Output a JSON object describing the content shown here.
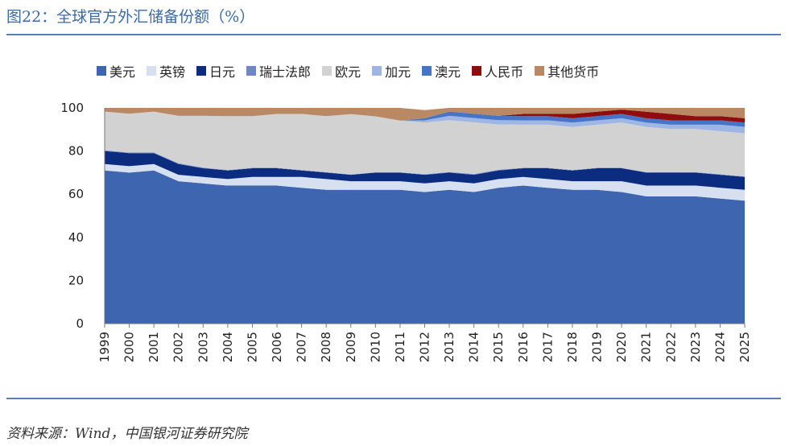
{
  "page": {
    "title": "图22：全球官方外汇储备份额（%）",
    "source": "资料来源：Wind，中国银河证券研究院"
  },
  "chart_data": {
    "type": "area",
    "stacked": true,
    "x": [
      "1999",
      "2000",
      "2001",
      "2002",
      "2003",
      "2004",
      "2005",
      "2006",
      "2007",
      "2008",
      "2009",
      "2010",
      "2011",
      "2012",
      "2013",
      "2014",
      "2015",
      "2016",
      "2017",
      "2018",
      "2019",
      "2020",
      "2021",
      "2022",
      "2023",
      "2024",
      "2025"
    ],
    "series": [
      {
        "name": "美元",
        "color": "#3e65b0",
        "values": [
          71,
          70,
          71,
          66,
          65,
          64,
          64,
          64,
          63,
          62,
          62,
          62,
          62,
          61,
          62,
          61,
          63,
          64,
          63,
          62,
          62,
          61,
          59,
          59,
          59,
          58,
          57
        ]
      },
      {
        "name": "英镑",
        "color": "#d6e0f1",
        "values": [
          3,
          3,
          3,
          3,
          3,
          3,
          4,
          4,
          5,
          5,
          4,
          4,
          4,
          4,
          4,
          4,
          4,
          4,
          4,
          4,
          4,
          5,
          5,
          5,
          5,
          5,
          5
        ]
      },
      {
        "name": "日元",
        "color": "#0c2c80",
        "values": [
          6,
          6,
          5,
          5,
          4,
          4,
          4,
          4,
          3,
          3,
          3,
          4,
          4,
          4,
          4,
          4,
          4,
          4,
          5,
          5,
          6,
          6,
          6,
          6,
          6,
          6,
          6
        ]
      },
      {
        "name": "瑞士法郎",
        "color": "#6f87c2",
        "values": [
          0.3,
          0.3,
          0.3,
          0.3,
          0.3,
          0.2,
          0.2,
          0.2,
          0.2,
          0.2,
          0.1,
          0.1,
          0.1,
          0.2,
          0.3,
          0.3,
          0.3,
          0.2,
          0.2,
          0.2,
          0.2,
          0.2,
          0.2,
          0.2,
          0.2,
          0.2,
          0.2
        ]
      },
      {
        "name": "欧元",
        "color": "#d3d2d2",
        "values": [
          18,
          18,
          19,
          22,
          24,
          25,
          24,
          25,
          26,
          26,
          28,
          26,
          24,
          24,
          24,
          24,
          21,
          20,
          20,
          20,
          20,
          21,
          21,
          20,
          20,
          20,
          20
        ]
      },
      {
        "name": "加元",
        "color": "#9eb6e4",
        "values": [
          0,
          0,
          0,
          0,
          0,
          0,
          0,
          0,
          0,
          0,
          0,
          0,
          0,
          1,
          2,
          2,
          2,
          2,
          2,
          2,
          2,
          2,
          2,
          2,
          2,
          3,
          3
        ]
      },
      {
        "name": "澳元",
        "color": "#4774c6",
        "values": [
          0,
          0,
          0,
          0,
          0,
          0,
          0,
          0,
          0,
          0,
          0,
          0,
          0,
          1,
          2,
          2,
          2,
          2,
          2,
          2,
          2,
          2,
          2,
          2,
          2,
          2,
          2
        ]
      },
      {
        "name": "人民币",
        "color": "#8f0d0d",
        "values": [
          0,
          0,
          0,
          0,
          0,
          0,
          0,
          0,
          0,
          0,
          0,
          0,
          0,
          0,
          0,
          0,
          0,
          1,
          1,
          2,
          2,
          2,
          3,
          3,
          2,
          2,
          2
        ]
      },
      {
        "name": "其他货币",
        "color": "#b88964",
        "values": [
          1.7,
          2.7,
          1.7,
          3.7,
          3.7,
          3.8,
          3.8,
          2.8,
          2.8,
          3.8,
          2.9,
          3.9,
          5.9,
          3.8,
          1.7,
          2.7,
          3.7,
          2.8,
          2.8,
          2.8,
          1.8,
          0.8,
          1.8,
          2.8,
          3.8,
          3.8,
          4.8
        ]
      }
    ],
    "ylim": [
      0,
      100
    ],
    "yticks": [
      "0",
      "20",
      "40",
      "60",
      "80",
      "100"
    ],
    "legend_position": "top"
  }
}
